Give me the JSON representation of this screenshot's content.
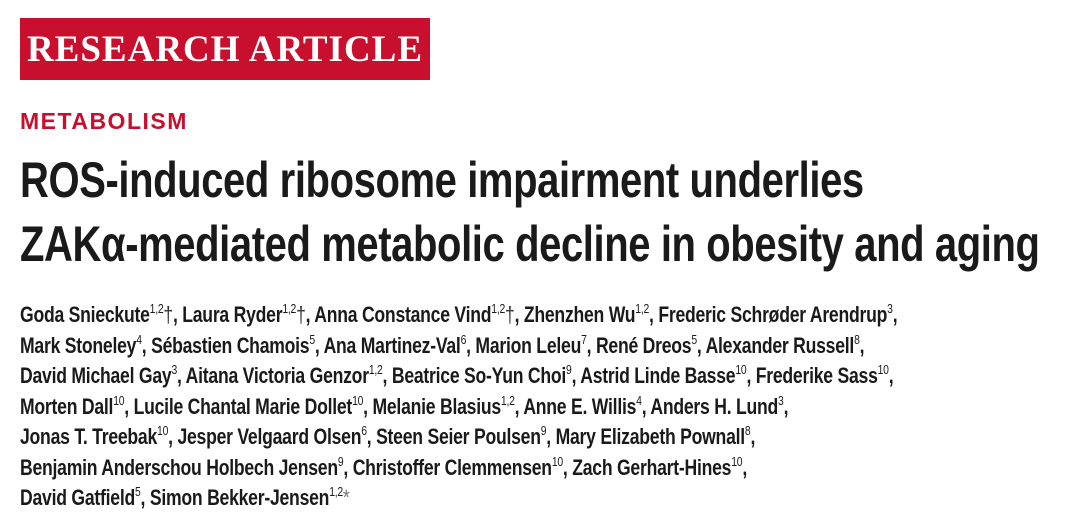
{
  "banner": "RESEARCH ARTICLE",
  "section": "METABOLISM",
  "title_lines": [
    "ROS-induced ribosome impairment underlies",
    "ZAKα-mediated metabolic decline in obesity and aging"
  ],
  "authors": [
    [
      {
        "name": "Goda Snieckute",
        "sup": "1,2",
        "mark": "†"
      },
      {
        "name": "Laura Ryder",
        "sup": "1,2",
        "mark": "†"
      },
      {
        "name": "Anna Constance Vind",
        "sup": "1,2",
        "mark": "†"
      },
      {
        "name": "Zhenzhen Wu",
        "sup": "1,2"
      },
      {
        "name": "Frederic Schrøder Arendrup",
        "sup": "3"
      }
    ],
    [
      {
        "name": "Mark Stoneley",
        "sup": "4"
      },
      {
        "name": "Sébastien Chamois",
        "sup": "5"
      },
      {
        "name": "Ana Martinez-Val",
        "sup": "6"
      },
      {
        "name": "Marion Leleu",
        "sup": "7"
      },
      {
        "name": "René Dreos",
        "sup": "5"
      },
      {
        "name": "Alexander Russell",
        "sup": "8"
      }
    ],
    [
      {
        "name": "David Michael Gay",
        "sup": "3"
      },
      {
        "name": "Aitana Victoria Genzor",
        "sup": "1,2"
      },
      {
        "name": "Beatrice So-Yun Choi",
        "sup": "9"
      },
      {
        "name": "Astrid Linde Basse",
        "sup": "10"
      },
      {
        "name": "Frederike Sass",
        "sup": "10"
      }
    ],
    [
      {
        "name": "Morten Dall",
        "sup": "10"
      },
      {
        "name": "Lucile Chantal Marie Dollet",
        "sup": "10"
      },
      {
        "name": "Melanie Blasius",
        "sup": "1,2"
      },
      {
        "name": "Anne E. Willis",
        "sup": "4"
      },
      {
        "name": "Anders H. Lund",
        "sup": "3"
      }
    ],
    [
      {
        "name": "Jonas T. Treebak",
        "sup": "10"
      },
      {
        "name": "Jesper Velgaard Olsen",
        "sup": "6"
      },
      {
        "name": "Steen Seier Poulsen",
        "sup": "9"
      },
      {
        "name": "Mary Elizabeth Pownall",
        "sup": "8"
      }
    ],
    [
      {
        "name": "Benjamin Anderschou Holbech Jensen",
        "sup": "9"
      },
      {
        "name": "Christoffer Clemmensen",
        "sup": "10"
      },
      {
        "name": "Zach Gerhart-Hines",
        "sup": "10"
      }
    ],
    [
      {
        "name": "David Gatfield",
        "sup": "5"
      },
      {
        "name": "Simon Bekker-Jensen",
        "sup": "1,2",
        "mark": "*"
      }
    ]
  ]
}
